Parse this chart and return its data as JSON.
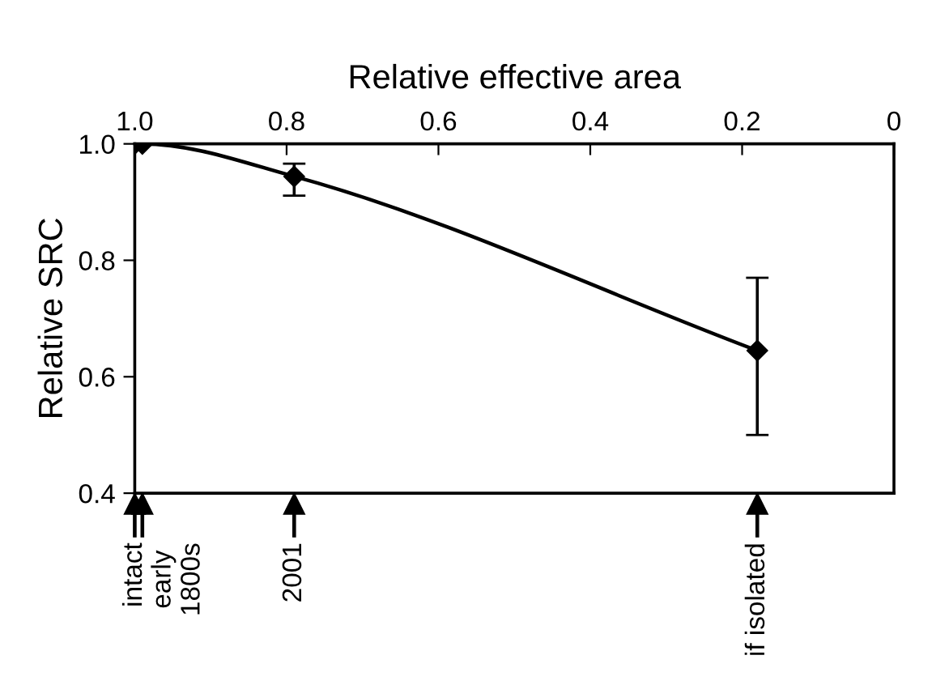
{
  "chart_data": {
    "type": "line",
    "xlabel": "Relative effective area",
    "ylabel": "Relative SRC",
    "x": [
      1.0,
      0.99,
      0.79,
      0.18
    ],
    "series": [
      {
        "color": "#000000",
        "values": [
          1.0,
          1.0,
          0.944,
          0.645
        ],
        "errors": [
          null,
          null,
          [
            0.911,
            0.966
          ],
          [
            0.5,
            0.77
          ]
        ]
      }
    ],
    "marker": "diamond",
    "line_style": "solid",
    "grid": false,
    "legend": false,
    "xlim": [
      1.0,
      0.0
    ],
    "xticks": [
      {
        "value": 1.0,
        "label": "1.0"
      },
      0.8,
      0.6,
      0.4,
      0.2,
      0
    ],
    "ylim": [
      0.4,
      1.0
    ],
    "yticks": [
      0.4,
      0.6,
      0.8,
      {
        "value": 1.0,
        "label": "1.0"
      }
    ],
    "annotations": [
      "intact",
      "early\n1800s",
      "2001",
      "if isolated"
    ]
  }
}
